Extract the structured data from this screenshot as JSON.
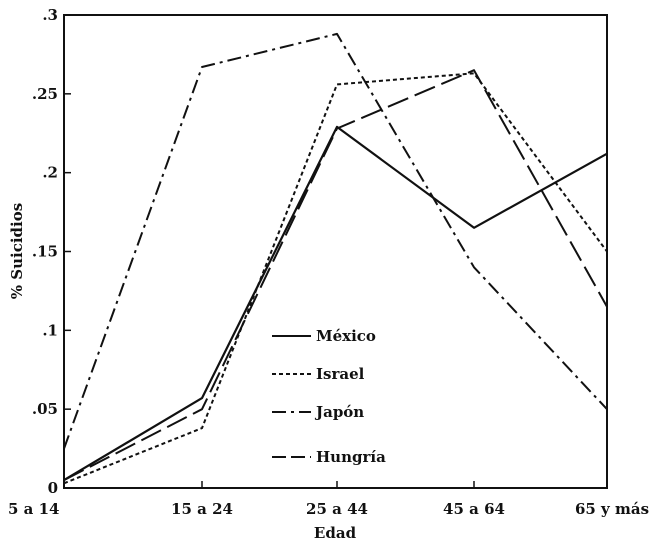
{
  "chart_data": {
    "type": "line",
    "title": "",
    "xlabel": "Edad",
    "ylabel": "% Suicidios",
    "categories": [
      "5 a 14",
      "15 a 24",
      "25 a 44",
      "45 a 64",
      "65 y más"
    ],
    "ylim": [
      0,
      0.3
    ],
    "yticks": [
      {
        "value": 0,
        "label": "0"
      },
      {
        "value": 0.05,
        "label": ".05"
      },
      {
        "value": 0.1,
        "label": ".1"
      },
      {
        "value": 0.15,
        "label": ".15"
      },
      {
        "value": 0.2,
        "label": ".2"
      },
      {
        "value": 0.25,
        "label": ".25"
      },
      {
        "value": 0.3,
        "label": ".3"
      }
    ],
    "grid": false,
    "legend_position": "lower-center",
    "series": [
      {
        "name": "México",
        "style": "solid",
        "values": [
          0.005,
          0.057,
          0.229,
          0.165,
          0.212
        ]
      },
      {
        "name": "Israel",
        "style": "dotted",
        "values": [
          0.003,
          0.038,
          0.256,
          0.263,
          0.15
        ]
      },
      {
        "name": "Japón",
        "style": "dash-dot",
        "values": [
          0.025,
          0.267,
          0.288,
          0.14,
          0.05
        ]
      },
      {
        "name": "Hungría",
        "style": "long-dash",
        "values": [
          0.005,
          0.05,
          0.228,
          0.265,
          0.115
        ]
      }
    ],
    "color": "#111111"
  }
}
